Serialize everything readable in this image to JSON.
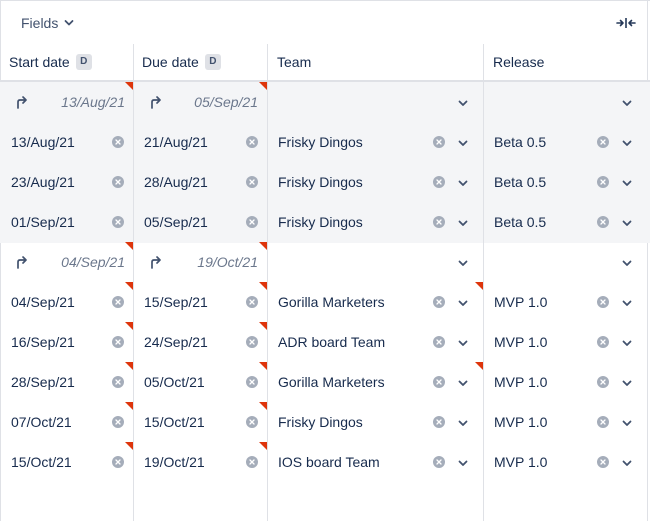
{
  "toolbar": {
    "fields_label": "Fields"
  },
  "columns": {
    "start": "Start date",
    "due": "Due date",
    "team": "Team",
    "release": "Release",
    "date_badge": "D"
  },
  "groups": [
    {
      "start": "13/Aug/21",
      "due": "05/Sep/21"
    },
    {
      "start": "04/Sep/21",
      "due": "19/Oct/21"
    }
  ],
  "rows": [
    {
      "start": "13/Aug/21",
      "due": "21/Aug/21",
      "team": "Frisky Dingos",
      "release": "Beta 0.5"
    },
    {
      "start": "23/Aug/21",
      "due": "28/Aug/21",
      "team": "Frisky Dingos",
      "release": "Beta 0.5"
    },
    {
      "start": "01/Sep/21",
      "due": "05/Sep/21",
      "team": "Frisky Dingos",
      "release": "Beta 0.5"
    },
    {
      "start": "04/Sep/21",
      "due": "15/Sep/21",
      "team": "Gorilla Marketers",
      "release": "MVP 1.0"
    },
    {
      "start": "16/Sep/21",
      "due": "24/Sep/21",
      "team": "ADR board Team",
      "release": "MVP 1.0"
    },
    {
      "start": "28/Sep/21",
      "due": "05/Oct/21",
      "team": "Gorilla Marketers",
      "release": "MVP 1.0"
    },
    {
      "start": "07/Oct/21",
      "due": "15/Oct/21",
      "team": "Frisky Dingos",
      "release": "MVP 1.0"
    },
    {
      "start": "15/Oct/21",
      "due": "19/Oct/21",
      "team": "IOS board Team",
      "release": "MVP 1.0"
    }
  ],
  "colors": {
    "flag": "#de350b",
    "group_bg": "#f4f5f7",
    "border": "#dfe1e6",
    "text": "#172b4d",
    "muted": "#6b778c"
  },
  "icons": {
    "collapse": "collapse-columns-icon",
    "chevron": "chevron-down-icon",
    "clear": "clear-icon",
    "inherit": "inherit-arrow-icon"
  }
}
